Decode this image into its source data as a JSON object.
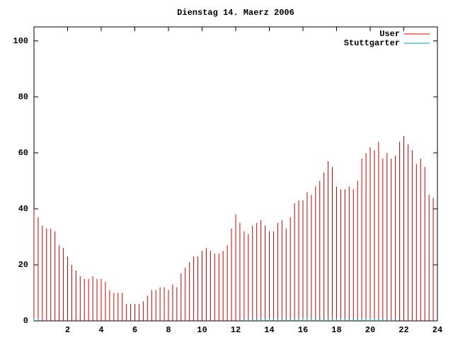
{
  "chart_data": {
    "type": "impulse",
    "title": "Dienstag 14. Maerz 2006",
    "x": [
      0,
      0.25,
      0.5,
      0.75,
      1,
      1.25,
      1.5,
      1.75,
      2,
      2.25,
      2.5,
      2.75,
      3,
      3.25,
      3.5,
      3.75,
      4,
      4.25,
      4.5,
      4.75,
      5,
      5.25,
      5.5,
      5.75,
      6,
      6.25,
      6.5,
      6.75,
      7,
      7.25,
      7.5,
      7.75,
      8,
      8.25,
      8.5,
      8.75,
      9,
      9.25,
      9.5,
      9.75,
      10,
      10.25,
      10.5,
      10.75,
      11,
      11.25,
      11.5,
      11.75,
      12,
      12.25,
      12.5,
      12.75,
      13,
      13.25,
      13.5,
      13.75,
      14,
      14.25,
      14.5,
      14.75,
      15,
      15.25,
      15.5,
      15.75,
      16,
      16.25,
      16.5,
      16.75,
      17,
      17.25,
      17.5,
      17.75,
      18,
      18.25,
      18.5,
      18.75,
      19,
      19.25,
      19.5,
      19.75,
      20,
      20.25,
      20.5,
      20.75,
      21,
      21.25,
      21.5,
      21.75,
      22,
      22.25,
      22.5,
      22.75,
      23,
      23.25,
      23.5,
      23.75
    ],
    "series": [
      {
        "name": "User",
        "color": "#cc0000",
        "values": [
          40,
          37,
          34,
          33,
          33,
          32,
          27,
          26,
          23,
          20,
          18,
          16,
          15,
          15,
          16,
          15,
          15,
          14,
          11,
          10,
          10,
          10,
          6,
          6,
          6,
          6,
          7,
          9,
          11,
          11,
          12,
          12,
          11,
          13,
          12,
          17,
          19,
          21,
          23,
          23,
          25,
          26,
          25,
          24,
          24,
          25,
          27,
          33,
          38,
          35,
          32,
          31,
          34,
          35,
          36,
          34,
          32,
          32,
          35,
          36,
          33,
          37,
          42,
          43,
          43,
          46,
          45,
          48,
          50,
          53,
          57,
          55,
          48,
          47,
          47,
          48,
          47,
          50,
          58,
          60,
          62,
          61,
          64,
          58,
          60,
          58,
          59,
          64,
          66,
          63,
          61,
          56,
          58,
          55,
          45,
          44
        ]
      },
      {
        "name": "Stuttgarter",
        "color": "#00a0a0",
        "values": [
          1,
          1,
          0,
          0,
          0,
          0,
          0,
          0,
          0,
          0,
          0,
          0,
          0,
          0,
          0,
          0,
          0,
          0,
          0,
          0,
          0,
          0,
          0,
          0,
          0,
          0,
          0,
          0,
          0,
          0,
          0,
          0,
          0,
          0,
          0,
          0,
          0,
          0,
          0,
          0,
          0,
          0,
          0,
          0,
          0,
          0,
          0,
          0,
          0,
          0,
          1,
          1,
          1,
          1,
          1,
          1,
          1,
          1,
          1,
          1,
          1,
          1,
          1,
          1,
          1,
          1,
          1,
          1,
          1,
          1,
          1,
          1,
          1,
          1,
          1,
          1,
          1,
          1,
          1,
          1,
          1,
          1,
          1,
          1,
          1,
          1,
          1,
          0,
          0,
          0,
          0,
          0,
          0,
          0,
          0,
          0
        ]
      }
    ],
    "xlim": [
      0,
      24
    ],
    "xticks": [
      2,
      4,
      6,
      8,
      10,
      12,
      14,
      16,
      18,
      20,
      22,
      24
    ],
    "ylim": [
      0,
      105
    ],
    "yticks": [
      0,
      20,
      40,
      60,
      80,
      100
    ],
    "legend": "top-right"
  }
}
